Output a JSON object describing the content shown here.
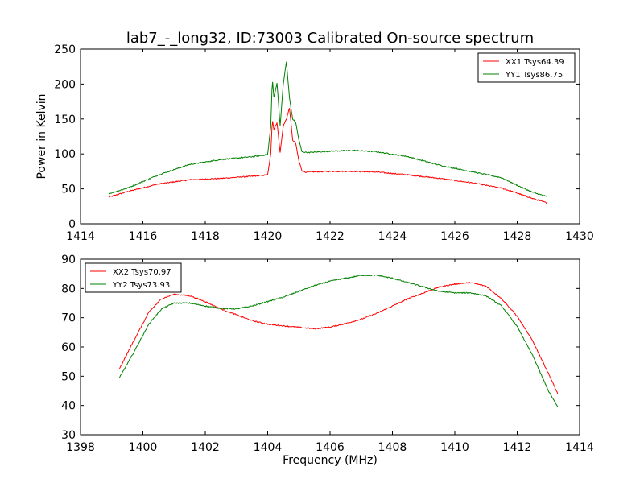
{
  "title": "lab7_-_long32, ID:73003 Calibrated On-source spectrum",
  "chart_data": [
    {
      "type": "line",
      "ylabel": "Power in Kelvin",
      "xlabel": "",
      "xlim": [
        1414,
        1430
      ],
      "ylim": [
        0,
        250
      ],
      "xticks": [
        1414,
        1416,
        1418,
        1420,
        1422,
        1424,
        1426,
        1428,
        1430
      ],
      "yticks": [
        0,
        50,
        100,
        150,
        200,
        250
      ],
      "grid": false,
      "legend_position": "top-right",
      "series": [
        {
          "name": "XX1 Tsys64.39",
          "color": "#ff0000",
          "points": [
            [
              1414.9,
              38
            ],
            [
              1415.5,
              46
            ],
            [
              1416.5,
              57
            ],
            [
              1417.5,
              63
            ],
            [
              1418.5,
              65
            ],
            [
              1419.5,
              68
            ],
            [
              1420.0,
              70
            ],
            [
              1420.1,
              100
            ],
            [
              1420.15,
              150
            ],
            [
              1420.2,
              135
            ],
            [
              1420.3,
              145
            ],
            [
              1420.4,
              102
            ],
            [
              1420.5,
              140
            ],
            [
              1420.6,
              150
            ],
            [
              1420.7,
              166
            ],
            [
              1420.8,
              120
            ],
            [
              1420.9,
              115
            ],
            [
              1421.0,
              90
            ],
            [
              1421.1,
              76
            ],
            [
              1421.2,
              74
            ],
            [
              1422.0,
              75
            ],
            [
              1422.8,
              75
            ],
            [
              1423.5,
              74
            ],
            [
              1424.5,
              70
            ],
            [
              1425.5,
              65
            ],
            [
              1426.5,
              59
            ],
            [
              1427.5,
              51
            ],
            [
              1428.0,
              44
            ],
            [
              1428.5,
              36
            ],
            [
              1428.95,
              30
            ]
          ]
        },
        {
          "name": "YY1 Tsys86.75",
          "color": "#008000",
          "points": [
            [
              1414.9,
              43
            ],
            [
              1415.5,
              51
            ],
            [
              1416.5,
              70
            ],
            [
              1417.5,
              85
            ],
            [
              1418.5,
              92
            ],
            [
              1419.5,
              96
            ],
            [
              1420.0,
              99
            ],
            [
              1420.1,
              140
            ],
            [
              1420.15,
              208
            ],
            [
              1420.2,
              180
            ],
            [
              1420.3,
              202
            ],
            [
              1420.4,
              140
            ],
            [
              1420.5,
              200
            ],
            [
              1420.6,
              232
            ],
            [
              1420.7,
              180
            ],
            [
              1420.8,
              150
            ],
            [
              1420.9,
              145
            ],
            [
              1421.0,
              120
            ],
            [
              1421.1,
              103
            ],
            [
              1421.3,
              102
            ],
            [
              1422.0,
              104
            ],
            [
              1422.8,
              105
            ],
            [
              1423.5,
              103
            ],
            [
              1424.5,
              96
            ],
            [
              1425.5,
              84
            ],
            [
              1426.5,
              75
            ],
            [
              1427.5,
              66
            ],
            [
              1428.0,
              55
            ],
            [
              1428.5,
              45
            ],
            [
              1428.95,
              39
            ]
          ]
        }
      ]
    },
    {
      "type": "line",
      "ylabel": "",
      "xlabel": "Frequency (MHz)",
      "xlim": [
        1398,
        1414
      ],
      "ylim": [
        30,
        90
      ],
      "xticks": [
        1398,
        1400,
        1402,
        1404,
        1406,
        1408,
        1410,
        1412,
        1414
      ],
      "yticks": [
        30,
        40,
        50,
        60,
        70,
        80,
        90
      ],
      "grid": false,
      "legend_position": "top-left",
      "series": [
        {
          "name": "XX2 Tsys70.97",
          "color": "#ff0000",
          "points": [
            [
              1399.25,
              52.5
            ],
            [
              1399.7,
              62
            ],
            [
              1400.2,
              72
            ],
            [
              1400.6,
              76.5
            ],
            [
              1401.0,
              78
            ],
            [
              1401.5,
              77.5
            ],
            [
              1402.0,
              75.5
            ],
            [
              1402.5,
              73
            ],
            [
              1403.0,
              71
            ],
            [
              1403.5,
              69
            ],
            [
              1404.0,
              67.8
            ],
            [
              1404.5,
              67.2
            ],
            [
              1405.0,
              66.7
            ],
            [
              1405.5,
              66.2
            ],
            [
              1406.0,
              66.8
            ],
            [
              1406.5,
              68
            ],
            [
              1407.0,
              69.5
            ],
            [
              1407.5,
              71.5
            ],
            [
              1408.0,
              74
            ],
            [
              1408.5,
              76.5
            ],
            [
              1409.0,
              78.5
            ],
            [
              1409.5,
              80.5
            ],
            [
              1410.0,
              81.5
            ],
            [
              1410.5,
              82
            ],
            [
              1411.0,
              80.8
            ],
            [
              1411.5,
              76.5
            ],
            [
              1412.0,
              70.5
            ],
            [
              1412.5,
              62
            ],
            [
              1413.0,
              51
            ],
            [
              1413.3,
              44
            ]
          ]
        },
        {
          "name": "YY2 Tsys73.93",
          "color": "#008000",
          "points": [
            [
              1399.25,
              49.5
            ],
            [
              1399.7,
              58
            ],
            [
              1400.2,
              68
            ],
            [
              1400.6,
              73
            ],
            [
              1401.0,
              75
            ],
            [
              1401.5,
              75
            ],
            [
              1402.0,
              74
            ],
            [
              1402.5,
              73.2
            ],
            [
              1403.0,
              73
            ],
            [
              1403.5,
              74
            ],
            [
              1404.0,
              75.5
            ],
            [
              1404.5,
              77
            ],
            [
              1405.0,
              79
            ],
            [
              1405.5,
              81
            ],
            [
              1406.0,
              82.5
            ],
            [
              1406.5,
              83.5
            ],
            [
              1407.0,
              84.5
            ],
            [
              1407.5,
              84.5
            ],
            [
              1408.0,
              83.5
            ],
            [
              1408.5,
              82
            ],
            [
              1409.0,
              80.5
            ],
            [
              1409.5,
              79
            ],
            [
              1410.0,
              78.5
            ],
            [
              1410.5,
              78.5
            ],
            [
              1411.0,
              77.5
            ],
            [
              1411.5,
              74
            ],
            [
              1412.0,
              67
            ],
            [
              1412.5,
              57
            ],
            [
              1413.0,
              45
            ],
            [
              1413.3,
              39.5
            ]
          ]
        }
      ]
    }
  ]
}
